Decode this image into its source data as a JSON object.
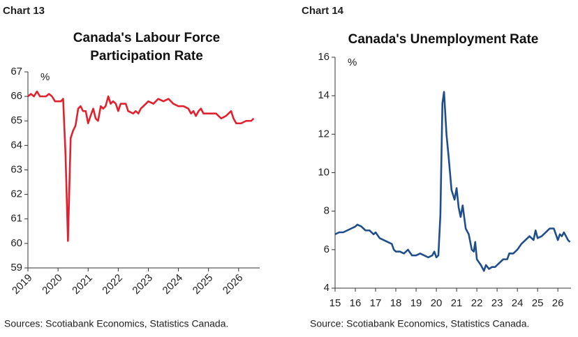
{
  "chart_data": [
    {
      "type": "line",
      "label": "Chart 13",
      "title": "Canada's Labour Force Participation Rate",
      "y_unit": "%",
      "source": "Sources: Scotiabank Economics, Statistics Canada.",
      "color": "#e3202d",
      "xlim": [
        2019,
        2026.7
      ],
      "xticks": [
        2019,
        2020,
        2021,
        2022,
        2023,
        2024,
        2025,
        2026
      ],
      "ylim": [
        59,
        67
      ],
      "yticks": [
        59,
        60,
        61,
        62,
        63,
        64,
        65,
        66,
        67
      ],
      "rotate_xticks": true,
      "x": [
        2019.0,
        2019.1,
        2019.2,
        2019.3,
        2019.4,
        2019.6,
        2019.7,
        2019.8,
        2019.9,
        2020.1,
        2020.17,
        2020.25,
        2020.33,
        2020.42,
        2020.5,
        2020.58,
        2020.67,
        2020.75,
        2020.83,
        2020.92,
        2021.0,
        2021.08,
        2021.17,
        2021.25,
        2021.33,
        2021.42,
        2021.5,
        2021.58,
        2021.67,
        2021.75,
        2021.83,
        2021.92,
        2022.0,
        2022.08,
        2022.25,
        2022.33,
        2022.5,
        2022.58,
        2022.67,
        2022.75,
        2022.92,
        2023.0,
        2023.17,
        2023.33,
        2023.5,
        2023.67,
        2023.83,
        2024.0,
        2024.17,
        2024.33,
        2024.42,
        2024.5,
        2024.58,
        2024.67,
        2024.75,
        2024.83,
        2025.0,
        2025.25,
        2025.42,
        2025.58,
        2025.75,
        2025.83,
        2025.92,
        2026.08,
        2026.25,
        2026.42,
        2026.5
      ],
      "values": [
        66.0,
        66.1,
        66.0,
        66.2,
        66.0,
        66.0,
        66.1,
        66.0,
        65.8,
        65.8,
        65.9,
        63.6,
        60.1,
        64.3,
        64.6,
        64.8,
        65.5,
        65.6,
        65.4,
        65.4,
        64.9,
        65.2,
        65.5,
        65.1,
        65.0,
        65.6,
        65.5,
        65.6,
        66.0,
        65.7,
        65.8,
        65.7,
        65.4,
        65.7,
        65.7,
        65.4,
        65.3,
        65.4,
        65.3,
        65.5,
        65.7,
        65.8,
        65.7,
        65.9,
        65.8,
        65.9,
        65.7,
        65.6,
        65.6,
        65.5,
        65.3,
        65.4,
        65.2,
        65.4,
        65.5,
        65.3,
        65.3,
        65.3,
        65.1,
        65.2,
        65.4,
        65.1,
        64.9,
        64.9,
        65.0,
        65.0,
        65.1
      ]
    },
    {
      "type": "line",
      "label": "Chart 14",
      "title": "Canada's Unemployment Rate",
      "y_unit": "%",
      "source": "Source: Scotiabank Economics, Statistics Canada.",
      "color": "#1f4e8c",
      "xlim": [
        15,
        26.65
      ],
      "xticks": [
        15,
        16,
        17,
        18,
        19,
        20,
        21,
        22,
        23,
        24,
        25,
        26
      ],
      "ylim": [
        4,
        16
      ],
      "yticks": [
        4,
        6,
        8,
        10,
        12,
        14,
        16
      ],
      "rotate_xticks": false,
      "x": [
        15.0,
        15.2,
        15.4,
        15.6,
        15.8,
        16.0,
        16.1,
        16.3,
        16.5,
        16.7,
        16.9,
        17.0,
        17.2,
        17.4,
        17.6,
        17.8,
        17.9,
        18.0,
        18.2,
        18.4,
        18.6,
        18.8,
        19.0,
        19.2,
        19.4,
        19.6,
        19.8,
        19.9,
        20.0,
        20.1,
        20.2,
        20.3,
        20.38,
        20.5,
        20.6,
        20.75,
        20.9,
        21.0,
        21.1,
        21.2,
        21.3,
        21.45,
        21.6,
        21.75,
        21.85,
        21.92,
        22.0,
        22.2,
        22.35,
        22.45,
        22.6,
        22.75,
        22.9,
        23.1,
        23.3,
        23.5,
        23.6,
        23.8,
        24.0,
        24.2,
        24.4,
        24.6,
        24.8,
        24.9,
        25.0,
        25.2,
        25.4,
        25.6,
        25.8,
        26.0,
        26.1,
        26.2,
        26.3,
        26.5,
        26.6
      ],
      "values": [
        6.8,
        6.9,
        6.9,
        7.0,
        7.1,
        7.2,
        7.3,
        7.2,
        7.0,
        7.0,
        6.8,
        6.9,
        6.6,
        6.5,
        6.4,
        6.3,
        6.0,
        5.9,
        5.9,
        5.8,
        6.0,
        5.7,
        5.7,
        5.8,
        5.7,
        5.6,
        5.7,
        5.9,
        5.6,
        5.7,
        7.8,
        13.6,
        14.2,
        12.0,
        10.9,
        9.1,
        8.6,
        9.2,
        8.2,
        7.7,
        8.3,
        7.1,
        6.8,
        6.0,
        5.9,
        6.4,
        5.5,
        5.2,
        4.9,
        5.2,
        5.0,
        5.1,
        5.1,
        5.3,
        5.5,
        5.5,
        5.8,
        5.8,
        6.0,
        6.3,
        6.5,
        6.7,
        6.5,
        7.0,
        6.6,
        6.7,
        6.9,
        7.1,
        7.1,
        6.5,
        6.8,
        6.7,
        6.9,
        6.5,
        6.4
      ]
    }
  ]
}
